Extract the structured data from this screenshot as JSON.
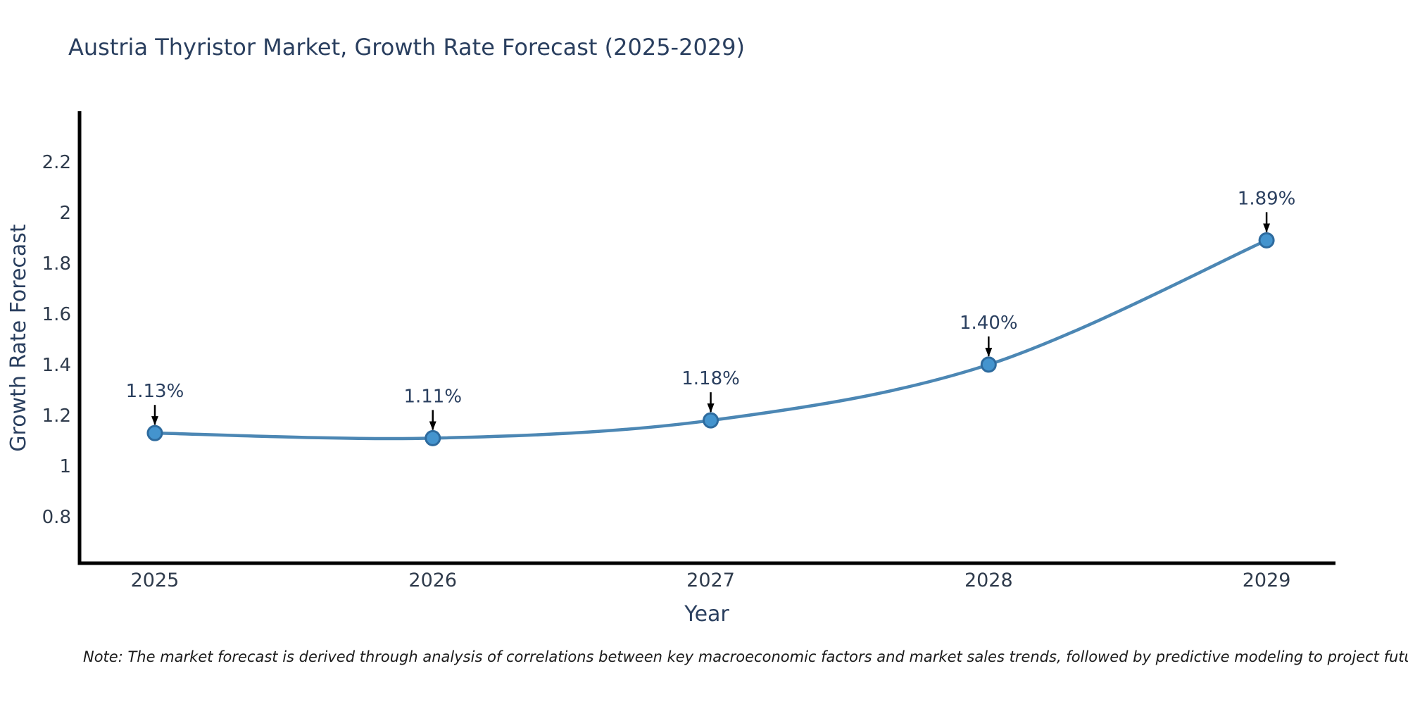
{
  "title": "Austria Thyristor Market, Growth Rate Forecast (2025-2029)",
  "note": "Note: The market forecast is derived through analysis of correlations between key macroeconomic factors and market sales trends, followed by predictive modeling to project future sales",
  "colors": {
    "background": "#ffffff",
    "title_text": "#2a3f5f",
    "axis_line": "#000000",
    "tick_text": "#2f3b4c",
    "axis_title_text": "#2a3f5f",
    "line": "#4c87b4",
    "marker_fill": "#4494ce",
    "marker_edge": "#2e6b9e",
    "annotation_text": "#2a3f5f",
    "arrow": "#000000",
    "note_text": "#1a1a1a"
  },
  "chart_data": {
    "type": "line",
    "title": "Austria Thyristor Market, Growth Rate Forecast (2025-2029)",
    "xlabel": "Year",
    "ylabel": "Growth Rate Forecast",
    "x": [
      2025,
      2026,
      2027,
      2028,
      2029
    ],
    "values": [
      1.13,
      1.11,
      1.18,
      1.4,
      1.89
    ],
    "point_labels": [
      "1.13%",
      "1.11%",
      "1.18%",
      "1.40%",
      "1.89%"
    ],
    "x_tick_labels": [
      "2025",
      "2026",
      "2027",
      "2028",
      "2029"
    ],
    "y_ticks": [
      0.8,
      1,
      1.2,
      1.4,
      1.6,
      1.8,
      2,
      2.2
    ],
    "y_tick_labels": [
      "0.8",
      "1",
      "1.2",
      "1.4",
      "1.6",
      "1.8",
      "2",
      "2.2"
    ],
    "xlim": [
      2024.729,
      2029.248
    ],
    "ylim": [
      0.617,
      2.399
    ],
    "grid": false,
    "legend": "none",
    "line_shape": "spline",
    "annotations": "percentage value above each point with downward black arrow"
  }
}
